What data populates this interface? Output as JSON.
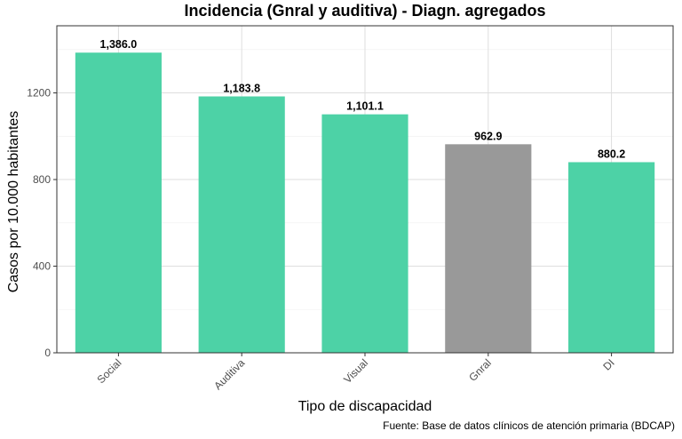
{
  "chart_data": {
    "type": "bar",
    "title": "Incidencia (Gnral y auditiva) - Diagn. agregados",
    "xlabel": "Tipo de discapacidad",
    "ylabel": "Casos por 10.000 habitantes",
    "caption": "Fuente: Base de datos clínicos de atención primaria (BDCAP)",
    "categories": [
      "Social",
      "Auditiva",
      "Visual",
      "Gnral",
      "DI"
    ],
    "values": [
      1386.0,
      1183.8,
      1101.1,
      962.9,
      880.2
    ],
    "value_labels": [
      "1,386.0",
      "1,183.8",
      "1,101.1",
      "962.9",
      "880.2"
    ],
    "bar_colors": [
      "#4dd2a6",
      "#4dd2a6",
      "#4dd2a6",
      "#999999",
      "#4dd2a6"
    ],
    "ylim": [
      0,
      1510
    ],
    "yticks": [
      0,
      400,
      800,
      1200
    ],
    "ytick_labels": [
      "0",
      "400",
      "800",
      "1200"
    ],
    "grid": true,
    "legend": "none",
    "panel_border_color": "#333333"
  }
}
